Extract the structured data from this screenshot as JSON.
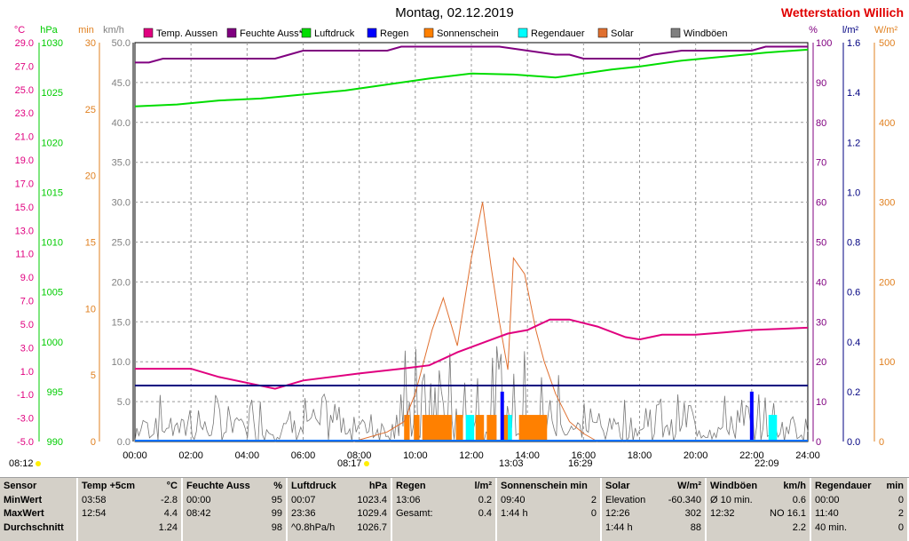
{
  "header": {
    "title": "Montag, 02.12.2019",
    "brand": "Wetterstation Willich"
  },
  "axes": {
    "temp": {
      "unit": "°C",
      "ticks": [
        "29.0",
        "27.0",
        "25.0",
        "23.0",
        "21.0",
        "19.0",
        "17.0",
        "15.0",
        "13.0",
        "11.0",
        "9.0",
        "7.0",
        "5.0",
        "3.0",
        "1.0",
        "-1.0",
        "-3.0",
        "-5.0"
      ],
      "color": "#e0007f"
    },
    "pressure": {
      "unit": "hPa",
      "ticks": [
        "1030",
        "1025",
        "1020",
        "1015",
        "1010",
        "1005",
        "1000",
        "995",
        "990"
      ],
      "color": "#00cc00"
    },
    "minutes": {
      "unit": "min",
      "ticks": [
        "30",
        "25",
        "20",
        "15",
        "10",
        "5",
        "0"
      ],
      "color": "#e08020"
    },
    "wind": {
      "unit": "km/h",
      "ticks": [
        "50.0",
        "45.0",
        "40.0",
        "35.0",
        "30.0",
        "25.0",
        "20.0",
        "15.0",
        "10.0",
        "5.0",
        "0.0"
      ],
      "color": "#808080"
    },
    "humidity": {
      "unit": "%",
      "ticks": [
        "100",
        "90",
        "80",
        "70",
        "60",
        "50",
        "40",
        "30",
        "20",
        "10",
        "0"
      ],
      "color": "#800080"
    },
    "rain": {
      "unit": "l/m²",
      "ticks": [
        "1.6",
        "1.4",
        "1.2",
        "1.0",
        "0.8",
        "0.6",
        "0.4",
        "0.2",
        "0.0"
      ],
      "color": "#000080"
    },
    "solar": {
      "unit": "W/m²",
      "ticks": [
        "500",
        "400",
        "300",
        "200",
        "100",
        "0"
      ],
      "color": "#e08020"
    }
  },
  "legend": [
    {
      "label": "Temp. Aussen",
      "color": "#e0007f"
    },
    {
      "label": "Feuchte Auss*",
      "color": "#800080"
    },
    {
      "label": "Luftdruck",
      "color": "#00dd00"
    },
    {
      "label": "Regen",
      "color": "#0000ff"
    },
    {
      "label": "Sonnenschein",
      "color": "#ff8000"
    },
    {
      "label": "Regendauer",
      "color": "#00ffff"
    },
    {
      "label": "Solar",
      "color": "#e07030"
    },
    {
      "label": "Windböen",
      "color": "#808080"
    }
  ],
  "events": {
    "sunrise": "08:12",
    "sunrise2": "08:17",
    "noon": "13:03",
    "sunset": "16:29",
    "moon": "22:09"
  },
  "chart_data": {
    "type": "line",
    "x_ticks": [
      "00:00",
      "02:00",
      "04:00",
      "06:00",
      "08:00",
      "10:00",
      "12:00",
      "14:00",
      "16:00",
      "18:00",
      "20:00",
      "22:00",
      "24:00"
    ],
    "series": [
      {
        "name": "Temp. Aussen",
        "axis": "°C",
        "points": [
          [
            0,
            1.2
          ],
          [
            2,
            1.2
          ],
          [
            3,
            0.5
          ],
          [
            5,
            -0.5
          ],
          [
            6,
            0.2
          ],
          [
            8,
            0.8
          ],
          [
            9.5,
            1.2
          ],
          [
            10.5,
            1.5
          ],
          [
            11.5,
            2.6
          ],
          [
            12.5,
            3.5
          ],
          [
            13.3,
            4.2
          ],
          [
            14,
            4.5
          ],
          [
            14.8,
            5.4
          ],
          [
            15.5,
            5.4
          ],
          [
            16.5,
            4.8
          ],
          [
            17.5,
            3.9
          ],
          [
            18,
            3.7
          ],
          [
            18.8,
            4.1
          ],
          [
            20,
            4.1
          ],
          [
            21,
            4.3
          ],
          [
            22,
            4.5
          ],
          [
            24,
            4.7
          ]
        ]
      },
      {
        "name": "Feuchte Auss*",
        "axis": "%",
        "points": [
          [
            0,
            95
          ],
          [
            0.5,
            95
          ],
          [
            1,
            96
          ],
          [
            5,
            96
          ],
          [
            5.5,
            97
          ],
          [
            6,
            98
          ],
          [
            9,
            98
          ],
          [
            9.5,
            99
          ],
          [
            13,
            99
          ],
          [
            14,
            98
          ],
          [
            15,
            97
          ],
          [
            15.5,
            97
          ],
          [
            16,
            96
          ],
          [
            18,
            96
          ],
          [
            18.5,
            97
          ],
          [
            19.5,
            98
          ],
          [
            22,
            98
          ],
          [
            22.5,
            99
          ],
          [
            24,
            99
          ]
        ]
      },
      {
        "name": "Luftdruck",
        "axis": "hPa",
        "points": [
          [
            0,
            1023.6
          ],
          [
            1.5,
            1023.8
          ],
          [
            3,
            1024.2
          ],
          [
            4.5,
            1024.4
          ],
          [
            6,
            1024.8
          ],
          [
            7.5,
            1025.2
          ],
          [
            9,
            1025.8
          ],
          [
            10.5,
            1026.4
          ],
          [
            12,
            1026.9
          ],
          [
            13.5,
            1026.8
          ],
          [
            15,
            1026.5
          ],
          [
            16,
            1026.9
          ],
          [
            17,
            1027.3
          ],
          [
            18,
            1027.6
          ],
          [
            19.5,
            1028.2
          ],
          [
            21,
            1028.6
          ],
          [
            22.5,
            1029.0
          ],
          [
            24,
            1029.3
          ]
        ]
      },
      {
        "name": "Regen",
        "axis": "l/m²",
        "bars": [
          [
            13.1,
            0.2
          ],
          [
            22.0,
            0.2
          ]
        ]
      },
      {
        "name": "Solar",
        "axis": "W/m²",
        "points": [
          [
            7.8,
            0
          ],
          [
            9,
            12
          ],
          [
            9.6,
            25
          ],
          [
            10,
            60
          ],
          [
            10.6,
            140
          ],
          [
            11,
            180
          ],
          [
            11.5,
            120
          ],
          [
            12,
            230
          ],
          [
            12.4,
            300
          ],
          [
            12.7,
            220
          ],
          [
            13,
            150
          ],
          [
            13.3,
            90
          ],
          [
            13.5,
            230
          ],
          [
            13.9,
            210
          ],
          [
            14.3,
            140
          ],
          [
            14.6,
            100
          ],
          [
            15,
            60
          ],
          [
            15.5,
            25
          ],
          [
            16,
            10
          ],
          [
            16.5,
            0
          ]
        ]
      }
    ],
    "summary_columns": [
      {
        "title": "Sensor",
        "unit": "",
        "rows": [
          {
            "k": "MinWert",
            "v": ""
          },
          {
            "k": "MaxWert",
            "v": ""
          },
          {
            "k": "Durchschnitt",
            "v": ""
          }
        ]
      },
      {
        "title": "Temp +5cm",
        "unit": "°C",
        "rows": [
          {
            "k": "03:58",
            "v": "-2.8"
          },
          {
            "k": "12:54",
            "v": "4.4"
          },
          {
            "k": "",
            "v": "1.24"
          }
        ]
      },
      {
        "title": "Feuchte Auss",
        "unit": "%",
        "rows": [
          {
            "k": "00:00",
            "v": "95"
          },
          {
            "k": "08:42",
            "v": "99"
          },
          {
            "k": "",
            "v": "98"
          }
        ]
      },
      {
        "title": "Luftdruck",
        "unit": "hPa",
        "rows": [
          {
            "k": "00:07",
            "v": "1023.4"
          },
          {
            "k": "23:36",
            "v": "1029.4"
          },
          {
            "k": "^0.8hPa/h",
            "v": "1026.7"
          }
        ]
      },
      {
        "title": "Regen",
        "unit": "l/m²",
        "rows": [
          {
            "k": "",
            "v": ""
          },
          {
            "k": "13:06",
            "v": "0.2"
          },
          {
            "k": "Gesamt:",
            "v": "0.4"
          }
        ]
      },
      {
        "title": "Sonnenschein min",
        "unit": "",
        "rows": [
          {
            "k": "",
            "v": ""
          },
          {
            "k": "09:40",
            "v": "2"
          },
          {
            "k": "1:44 h",
            "v": "0"
          }
        ]
      },
      {
        "title": "Solar",
        "unit": "W/m²",
        "rows": [
          {
            "k": "Elevation",
            "v": "-60.340"
          },
          {
            "k": "12:26",
            "v": "302"
          },
          {
            "k": "1:44 h",
            "v": "88"
          }
        ]
      },
      {
        "title": "Windböen",
        "unit": "km/h",
        "rows": [
          {
            "k": "Ø 10 min.",
            "v": "0.6"
          },
          {
            "k": "12:32",
            "v": "NO 16.1"
          },
          {
            "k": "",
            "v": "2.2"
          }
        ]
      },
      {
        "title": "Regendauer",
        "unit": "min",
        "rows": [
          {
            "k": "00:00",
            "v": "0"
          },
          {
            "k": "11:40",
            "v": "2"
          },
          {
            "k": "40 min.",
            "v": "0"
          }
        ]
      }
    ]
  }
}
